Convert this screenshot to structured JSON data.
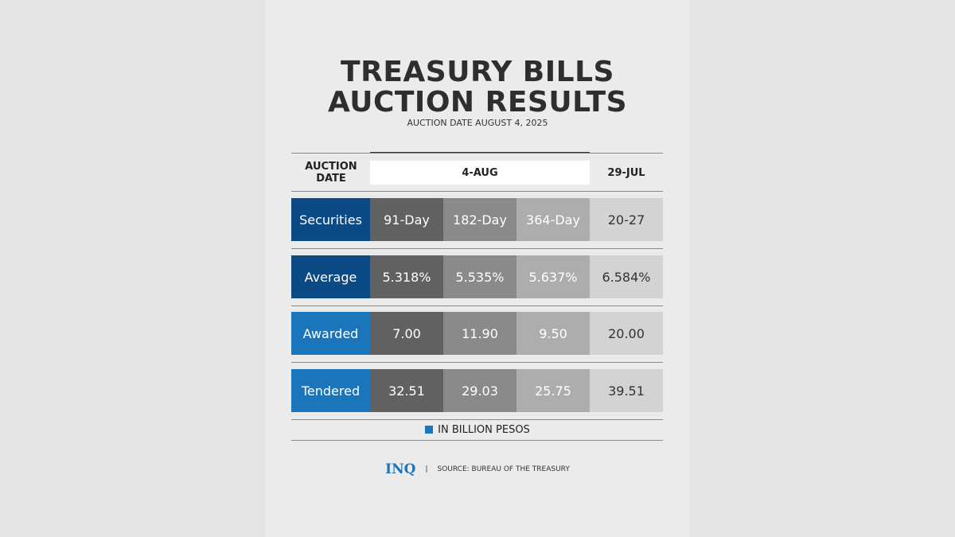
{
  "header": {
    "title": [
      "TREASURY BILLS",
      "AUCTION RESULTS"
    ],
    "subtitle": "AUCTION DATE AUGUST 4, 2025"
  },
  "table": {
    "header": [
      "AUCTION DATE",
      "4-AUG",
      "29-JUL"
    ],
    "rows": [
      [
        "Securities",
        "91-Day",
        "182-Day",
        "364-Day",
        "20-27"
      ],
      [
        "Average",
        "5.318%",
        "5.535%",
        "5.637%",
        "6.584%"
      ],
      [
        "Awarded",
        "7.00",
        "11.90",
        "9.50",
        "20.00"
      ],
      [
        "Tendered",
        "32.51",
        "29.03",
        "25.75",
        "39.51"
      ]
    ]
  },
  "legend": "IN BILLION PESOS",
  "footer": {
    "logo": "INQ",
    "source": "SOURCE: BUREAU OF THE TREASURY"
  }
}
